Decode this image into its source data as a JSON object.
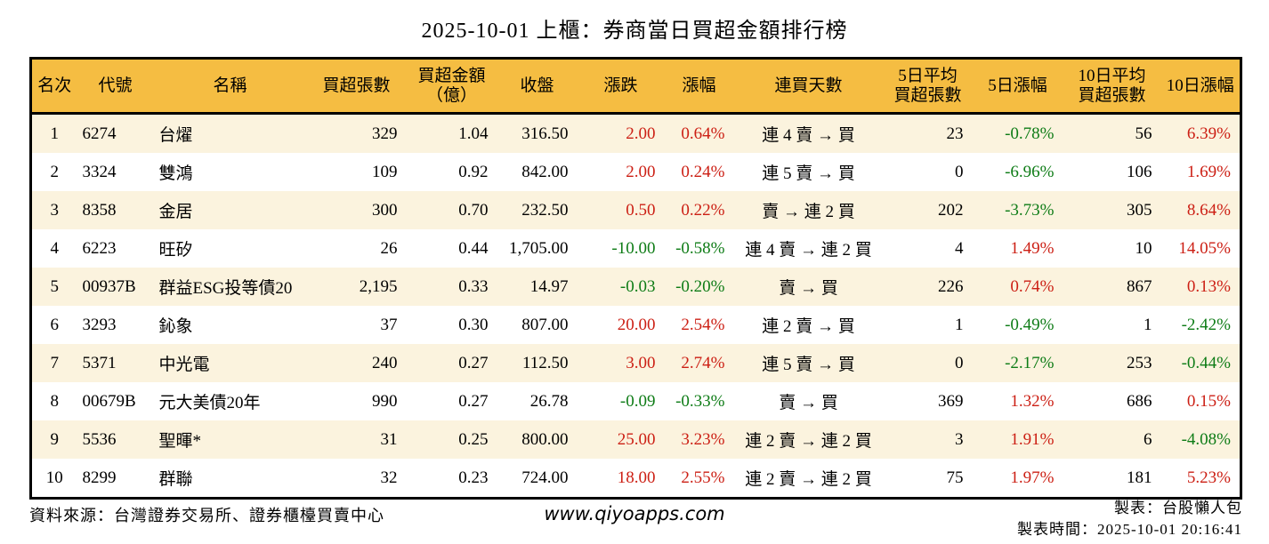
{
  "title": "2025-10-01 上櫃：券商當日買超金額排行榜",
  "colors": {
    "up": "#cc1f14",
    "down": "#0e7c16",
    "header_bg": "#f5bd42",
    "stripe_bg": "#fbf3de",
    "border": "#000000"
  },
  "chart_data": {
    "type": "table",
    "title": "2025-10-01 上櫃：券商當日買超金額排行榜",
    "columns": [
      "名次",
      "代號",
      "名稱",
      "買超張數",
      "買超金額\n（億）",
      "收盤",
      "漲跌",
      "漲幅",
      "連買天數",
      "5日平均\n買超張數",
      "5日漲幅",
      "10日平均\n買超張數",
      "10日漲幅"
    ],
    "rows": [
      [
        "1",
        "6274",
        "台燿",
        "329",
        "1.04",
        "316.50",
        "2.00",
        "0.64%",
        "連 4 賣 → 買",
        "23",
        "-0.78%",
        "56",
        "6.39%"
      ],
      [
        "2",
        "3324",
        "雙鴻",
        "109",
        "0.92",
        "842.00",
        "2.00",
        "0.24%",
        "連 5 賣 → 買",
        "0",
        "-6.96%",
        "106",
        "1.69%"
      ],
      [
        "3",
        "8358",
        "金居",
        "300",
        "0.70",
        "232.50",
        "0.50",
        "0.22%",
        "賣 → 連 2 買",
        "202",
        "-3.73%",
        "305",
        "8.64%"
      ],
      [
        "4",
        "6223",
        "旺矽",
        "26",
        "0.44",
        "1,705.00",
        "-10.00",
        "-0.58%",
        "連 4 賣 → 連 2 買",
        "4",
        "1.49%",
        "10",
        "14.05%"
      ],
      [
        "5",
        "00937B",
        "群益ESG投等債20",
        "2,195",
        "0.33",
        "14.97",
        "-0.03",
        "-0.20%",
        "賣 → 買",
        "226",
        "0.74%",
        "867",
        "0.13%"
      ],
      [
        "6",
        "3293",
        "鈊象",
        "37",
        "0.30",
        "807.00",
        "20.00",
        "2.54%",
        "連 2 賣 → 買",
        "1",
        "-0.49%",
        "1",
        "-2.42%"
      ],
      [
        "7",
        "5371",
        "中光電",
        "240",
        "0.27",
        "112.50",
        "3.00",
        "2.74%",
        "連 5 賣 → 買",
        "0",
        "-2.17%",
        "253",
        "-0.44%"
      ],
      [
        "8",
        "00679B",
        "元大美債20年",
        "990",
        "0.27",
        "26.78",
        "-0.09",
        "-0.33%",
        "賣 → 買",
        "369",
        "1.32%",
        "686",
        "0.15%"
      ],
      [
        "9",
        "5536",
        "聖暉*",
        "31",
        "0.25",
        "800.00",
        "25.00",
        "3.23%",
        "連 2 賣 → 連 2 買",
        "3",
        "1.91%",
        "6",
        "-4.08%"
      ],
      [
        "10",
        "8299",
        "群聯",
        "32",
        "0.23",
        "724.00",
        "18.00",
        "2.55%",
        "連 2 賣 → 連 2 買",
        "75",
        "1.97%",
        "181",
        "5.23%"
      ]
    ]
  },
  "footer": {
    "source": "資料來源：台灣證券交易所、證券櫃檯買賣中心",
    "website": "www.qiyoapps.com",
    "maker": "製表：台股懶人包",
    "made_time": "製表時間：2025-10-01 20:16:41"
  }
}
